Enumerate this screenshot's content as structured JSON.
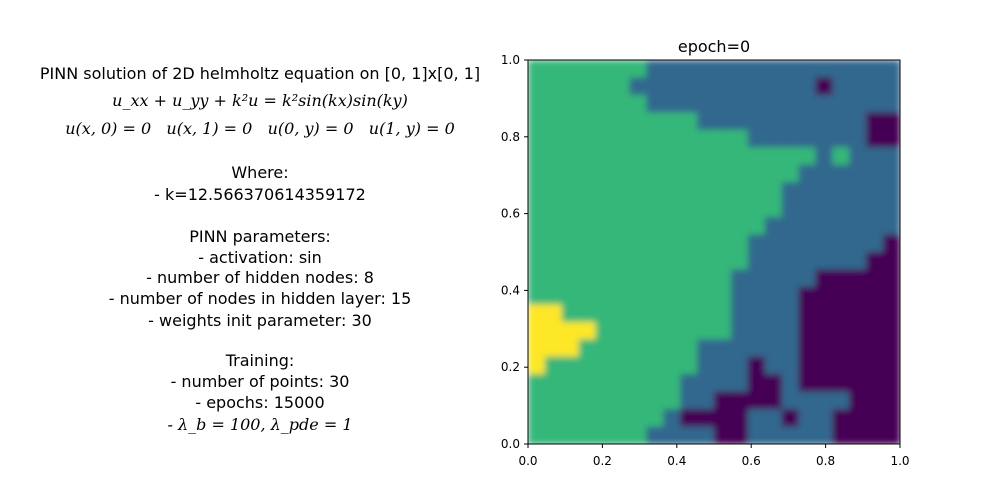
{
  "description": {
    "title": "PINN solution of 2D helmholtz equation on [0, 1]x[0, 1]",
    "equation": "u_xx + u_yy + k²u = k²sin(kx)sin(ky)",
    "boundary_conditions": "u(x, 0) = 0   u(x, 1) = 0   u(0, y) = 0   u(1, y) = 0",
    "where_heading": "Where:",
    "k_line": "- k=12.566370614359172",
    "pinn_heading": "PINN parameters:",
    "pinn_params": [
      "- activation: sin",
      "- number of hidden nodes: 8",
      "- number of nodes in hidden layer: 15",
      "- weights init parameter: 30"
    ],
    "training_heading": "Training:",
    "training_params": [
      "- number of points: 30",
      "- epochs: 15000"
    ],
    "lambda_line": "- λ_b = 100, λ_pde = 1"
  },
  "chart_data": {
    "type": "heatmap",
    "title": "epoch=0",
    "xlabel": "",
    "ylabel": "",
    "xlim": [
      0.0,
      1.0
    ],
    "ylim": [
      0.0,
      1.0
    ],
    "xticks": [
      "0.0",
      "0.2",
      "0.4",
      "0.6",
      "0.8",
      "1.0"
    ],
    "yticks": [
      "0.0",
      "0.2",
      "0.4",
      "0.6",
      "0.8",
      "1.0"
    ],
    "colormap": "viridis",
    "levels": {
      "0": "#440154",
      "1": "#31688e",
      "2": "#35b779",
      "3": "#fde725"
    },
    "grid_rows_top_to_bottom": [
      "2222222111111111111111",
      "2222221111111111101111",
      "2222222111111111111111",
      "2222222222111111111100",
      "2222222222222111111100",
      "2222222222222222212111",
      "2222222222222222111111",
      "2222222222222221111111",
      "2222222222222221111111",
      "2222222222222211111111",
      "2222222222222111111110",
      "2222222222222111111100",
      "2222222222221111100000",
      "2222222222221111000000",
      "3322222222221111000000",
      "3333222222221111000000",
      "3332222222111111000000",
      "3222222222111011000000",
      "2222222221111001000000",
      "2222222221100001111000",
      "2222222210000110110000",
      "2222222111100111110000"
    ]
  }
}
